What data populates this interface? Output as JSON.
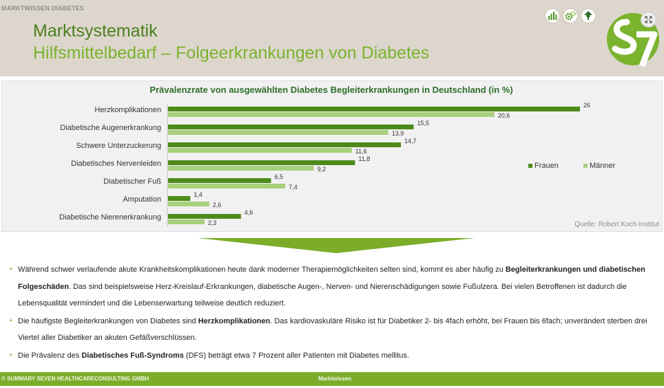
{
  "header": {
    "top_label": "MARKTWISSEN  DIABETES",
    "title": "Marktsystematik",
    "subtitle": "Hilfsmittelbedarf – Folgeerkrankungen von Diabetes",
    "icons": [
      "bar-chart-icon",
      "gears-icon",
      "tree-icon"
    ],
    "logo_text": "S7",
    "expand_icon": "expand-icon"
  },
  "colors": {
    "header_bg": "#ddd6cc",
    "frauen": "#4c8b1a",
    "maenner": "#a8cf7b",
    "footer": "#7bad2a"
  },
  "chart_data": {
    "type": "bar",
    "orientation": "horizontal",
    "title": "Prävalenzrate von ausgewählten Diabetes Begleiterkrankungen in Deutschland (in %)",
    "categories": [
      "Herzkomplikationen",
      "Diabetische Augenerkrankung",
      "Schwere Unterzuckerung",
      "Diabetisches Nervenleiden",
      "Diabetischer Fuß",
      "Amputation",
      "Diabetische Nierenerkrankung"
    ],
    "series": [
      {
        "name": "Frauen",
        "color": "#4c8b1a",
        "values": [
          26,
          15.5,
          14.7,
          11.8,
          6.5,
          1.4,
          4.6
        ],
        "labels": [
          "26",
          "15,5",
          "14,7",
          "11,8",
          "6,5",
          "1,4",
          "4,6"
        ]
      },
      {
        "name": "Männer",
        "color": "#a8cf7b",
        "values": [
          20.6,
          13.9,
          11.6,
          9.2,
          7.4,
          2.6,
          2.3
        ],
        "labels": [
          "20,6",
          "13,9",
          "11,6",
          "9,2",
          "7,4",
          "2,6",
          "2,3"
        ]
      }
    ],
    "legend_position": "right",
    "source": "Quelle: Robert Koch-Institut"
  },
  "bullets": [
    {
      "parts": [
        {
          "text": "Während schwer verlaufende akute Krankheitskomplikationen heute dank moderner Therapiemöglichkeiten selten sind, kommt es aber häufig zu ",
          "bold": false
        },
        {
          "text": "Begleiterkrankungen und diabetischen Folgeschäden",
          "bold": true
        },
        {
          "text": ". Das sind beispielsweise Herz-Kreislauf-Erkrankungen, diabetische Augen-, Nerven- und Nierenschädigungen sowie Fußulzera. Bei vielen Betroffenen ist dadurch die Lebensqualität vermindert und die Lebenserwartung teilweise deutlich reduziert.",
          "bold": false
        }
      ]
    },
    {
      "parts": [
        {
          "text": "Die häufigste Begleiterkrankungen von Diabetes sind ",
          "bold": false
        },
        {
          "text": "Herzkomplikationen",
          "bold": true
        },
        {
          "text": ". Das kardiovaskuläre Risiko ist für Diabetiker 2- bis 4fach erhöht, bei Frauen bis 6fach; unverändert sterben drei Viertel aller Diabetiker an akuten Gefäßverschlüssen.",
          "bold": false
        }
      ]
    },
    {
      "parts": [
        {
          "text": "Die Prävalenz des ",
          "bold": false
        },
        {
          "text": "Diabetisches Fuß-Syndroms",
          "bold": true
        },
        {
          "text": " (DFS) beträgt etwa 7 Prozent aller Patienten mit Diabetes mellitus.",
          "bold": false
        }
      ]
    }
  ],
  "footer": {
    "left": "© SUMMARY SEVEN HEALTHCARECONSULTING GMBH",
    "center": "Marktwissen"
  }
}
